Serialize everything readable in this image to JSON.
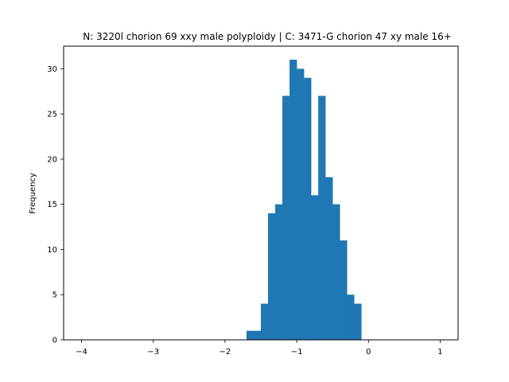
{
  "chart_data": {
    "type": "bar",
    "title": "N: 3220l chorion 69 xxy male polyploidy | C: 3471-G chorion 47 xy male 16+",
    "xlabel": "",
    "ylabel": "Frequency",
    "xlim": [
      -4.25,
      1.25
    ],
    "ylim": [
      0,
      32.5
    ],
    "x_ticks": [
      -4,
      -3,
      -2,
      -1,
      0,
      1
    ],
    "x_tick_labels": [
      "−4",
      "−3",
      "−2",
      "−1",
      "0",
      "1"
    ],
    "y_ticks": [
      0,
      5,
      10,
      15,
      20,
      25,
      30
    ],
    "y_tick_labels": [
      "0",
      "5",
      "10",
      "15",
      "20",
      "25",
      "30"
    ],
    "bin_edges": [
      -1.7,
      -1.6,
      -1.5,
      -1.4,
      -1.3,
      -1.2,
      -1.1,
      -1.0,
      -0.9,
      -0.8,
      -0.7,
      -0.6,
      -0.5,
      -0.4,
      -0.3,
      -0.2,
      -0.1,
      0.0
    ],
    "values": [
      1,
      1,
      4,
      14,
      15,
      27,
      31,
      30,
      29,
      16,
      27,
      18,
      15,
      11,
      5,
      4,
      0
    ],
    "bar_color": "#1f77b4",
    "grid": false
  }
}
